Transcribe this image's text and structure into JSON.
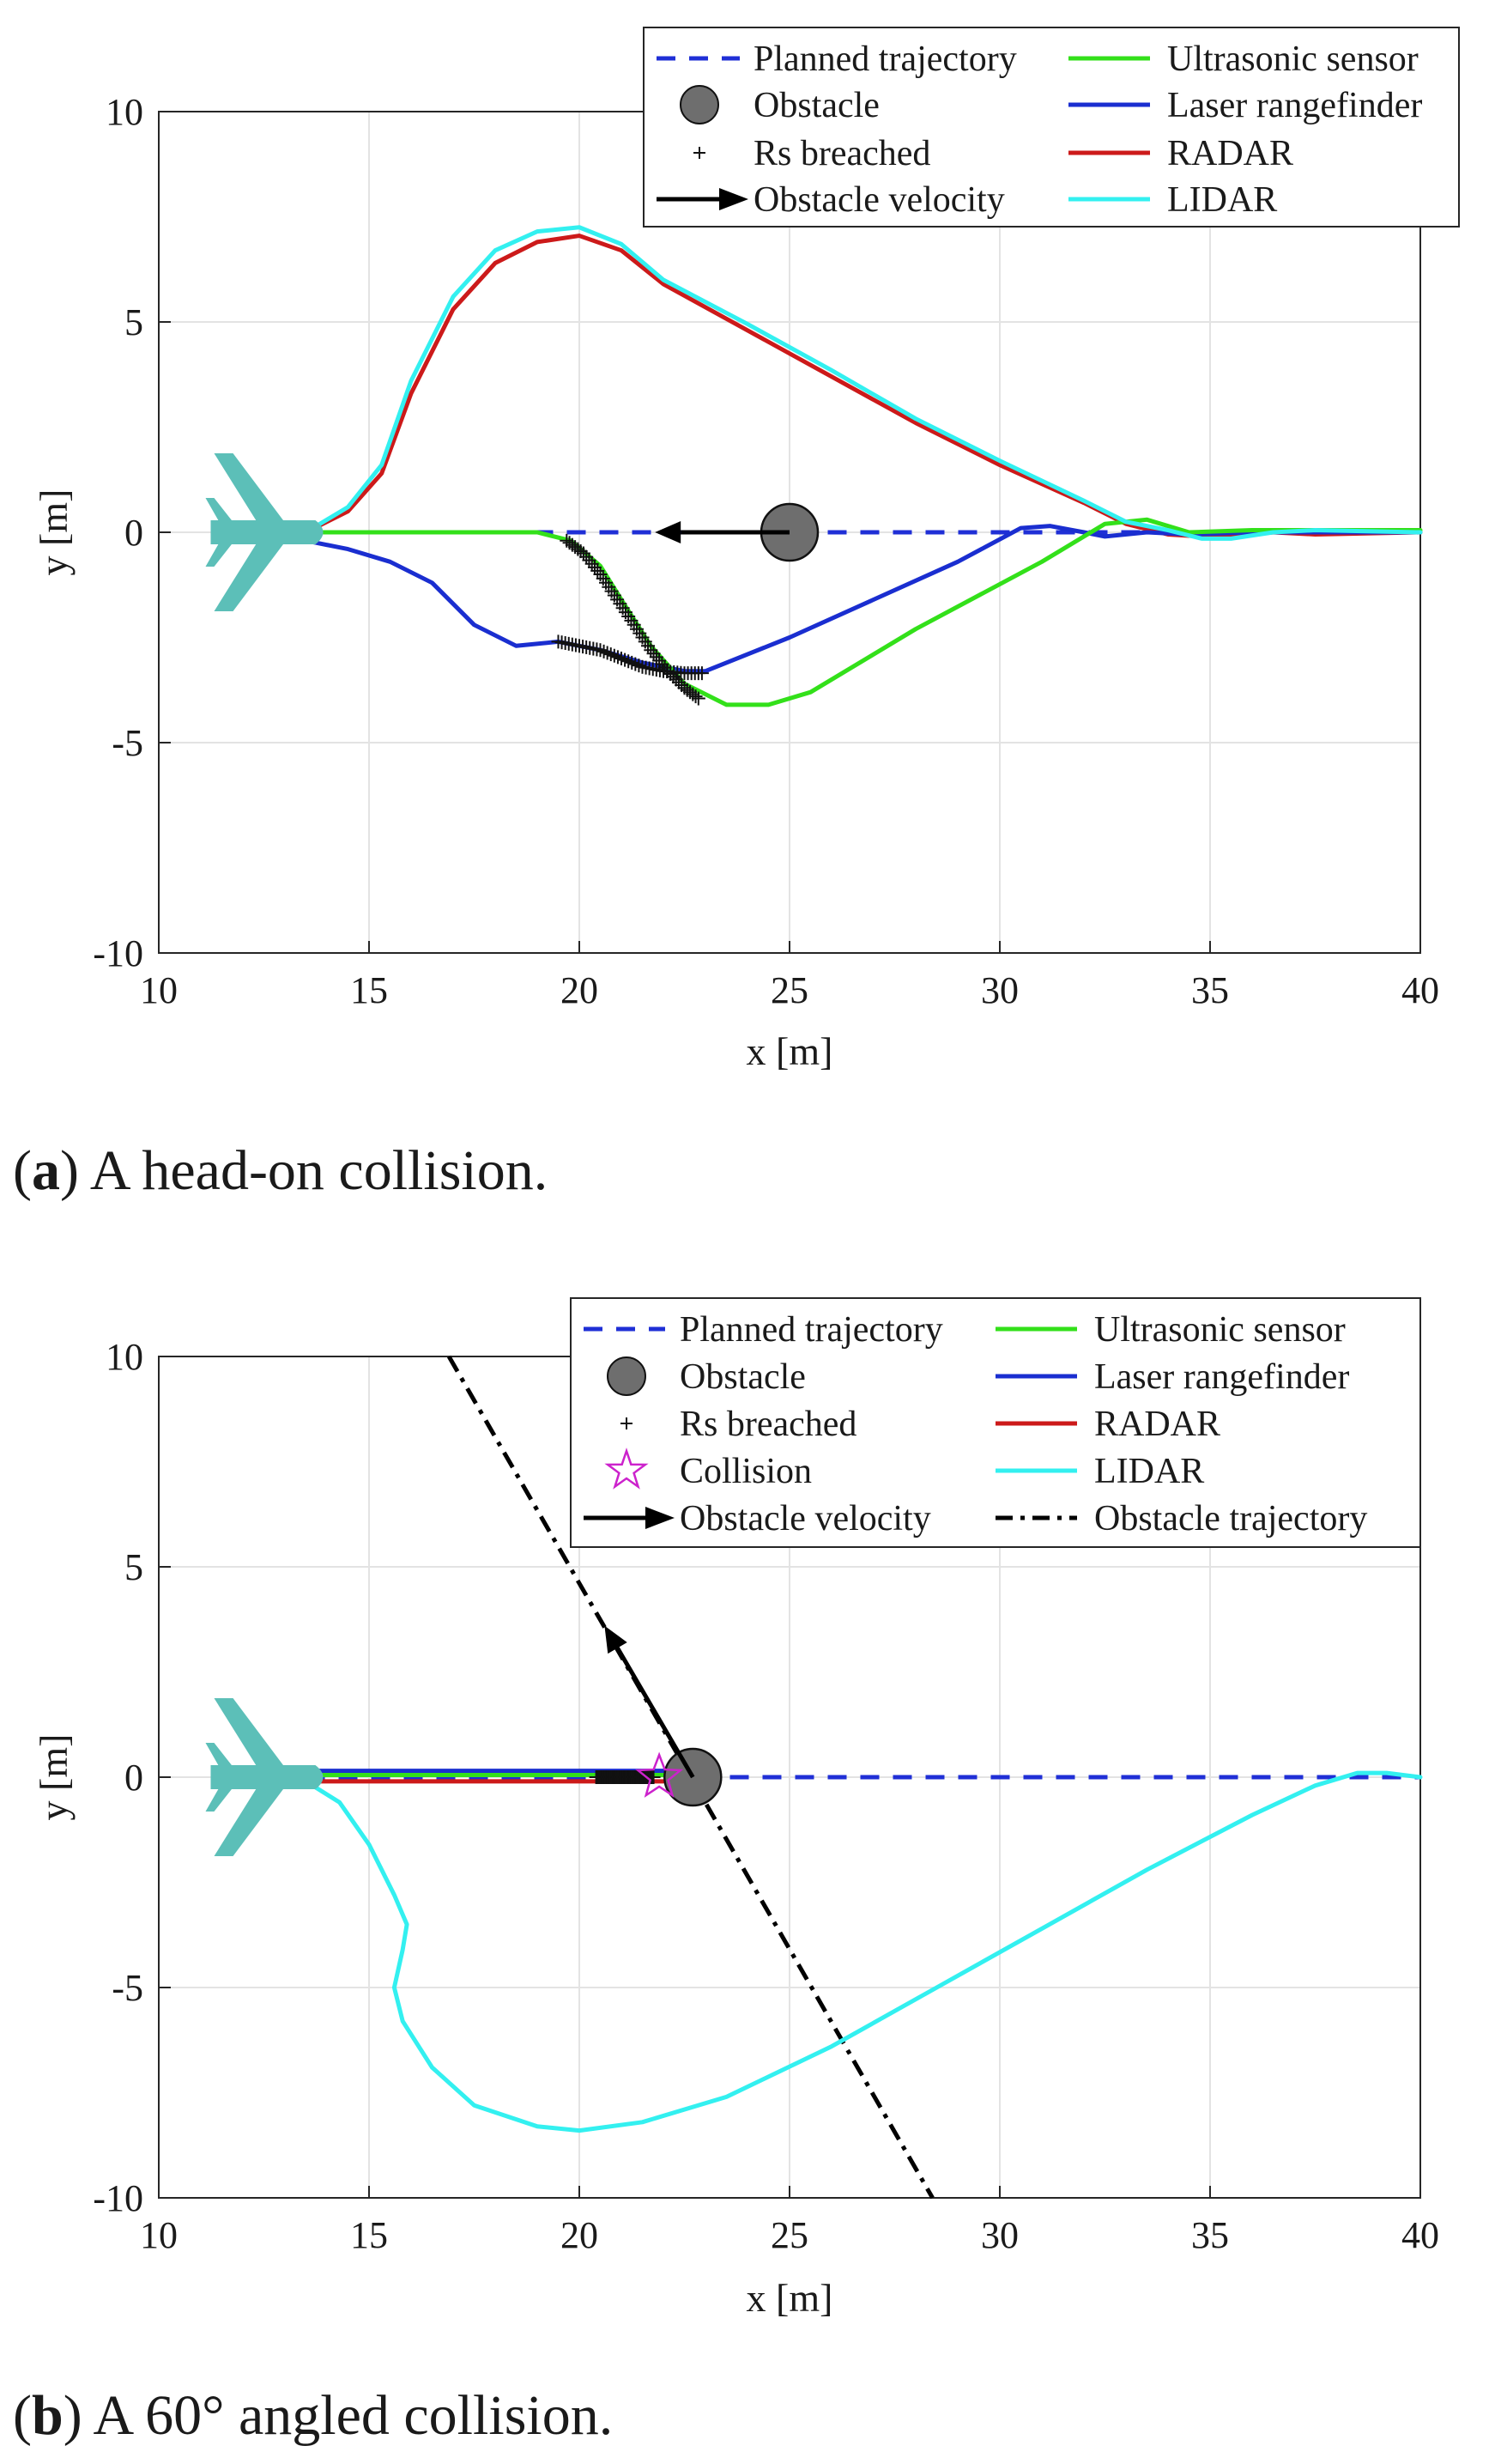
{
  "chart_data": [
    {
      "type": "line",
      "panel": "a",
      "caption_letter": "a",
      "caption_text": "A head-on collision.",
      "xlabel": "x [m]",
      "ylabel": "y [m]",
      "xlim": [
        10,
        40
      ],
      "ylim": [
        -10,
        10
      ],
      "xticks": [
        10,
        15,
        20,
        25,
        30,
        35,
        40
      ],
      "yticks": [
        10,
        5,
        0,
        -5,
        -10
      ],
      "grid": true,
      "legend_position": "top-right",
      "legend": {
        "planned": "Planned trajectory",
        "obstacle": "Obstacle",
        "breached": "Rs breached",
        "velocity": "Obstacle velocity",
        "ultrasonic": "Ultrasonic sensor",
        "laser": "Laser rangefinder",
        "radar": "RADAR",
        "lidar": "LIDAR"
      },
      "colors": {
        "planned": "#1f2fd6",
        "ultrasonic": "#33e01a",
        "laser": "#1a2ed0",
        "radar": "#cc1a1a",
        "lidar": "#33f0f0",
        "obstacle": "#6e6e6e",
        "aircraft": "#5cbfb8"
      },
      "planned": {
        "x": [
          13.5,
          40
        ],
        "y": [
          0,
          0
        ]
      },
      "aircraft": {
        "x": 12.5,
        "y": 0
      },
      "obstacle": {
        "x": 25,
        "y": 0
      },
      "velocity_arrow": {
        "from": [
          25,
          0
        ],
        "to": [
          21.8,
          0
        ]
      },
      "series": [
        {
          "name": "ultrasonic",
          "x": [
            13.5,
            16,
            19,
            19.8,
            20.5,
            21,
            21.7,
            22.5,
            23.5,
            24.5,
            25.5,
            28,
            31,
            32.5,
            33.5,
            34.5,
            36,
            40
          ],
          "y": [
            0,
            0,
            0,
            -0.2,
            -0.8,
            -1.6,
            -2.7,
            -3.6,
            -4.1,
            -4.1,
            -3.8,
            -2.3,
            -0.7,
            0.2,
            0.3,
            0,
            0.05,
            0.05
          ]
        },
        {
          "name": "laser",
          "x": [
            13.5,
            14.5,
            15.5,
            16.5,
            17.5,
            18.5,
            19.5,
            20.5,
            21.5,
            22.5,
            23,
            25,
            27,
            29,
            30.5,
            31.2,
            32,
            32.5,
            33.5,
            34.5,
            36,
            40
          ],
          "y": [
            -0.2,
            -0.4,
            -0.7,
            -1.2,
            -2.2,
            -2.7,
            -2.6,
            -2.8,
            -3.1,
            -3.3,
            -3.3,
            -2.5,
            -1.6,
            -0.7,
            0.1,
            0.15,
            0,
            -0.1,
            0,
            -0.05,
            0,
            0
          ]
        },
        {
          "name": "radar",
          "x": [
            13.5,
            14.5,
            15.3,
            16,
            17,
            18,
            19,
            20,
            21,
            22,
            24,
            26,
            28,
            30,
            32,
            33,
            34,
            34.8,
            35.5,
            36.5,
            37.5,
            40
          ],
          "y": [
            0,
            0.5,
            1.4,
            3.3,
            5.3,
            6.4,
            6.9,
            7.05,
            6.7,
            5.9,
            4.8,
            3.7,
            2.6,
            1.6,
            0.7,
            0.2,
            -0.05,
            -0.1,
            -0.1,
            0,
            -0.05,
            0
          ]
        },
        {
          "name": "lidar",
          "x": [
            13.5,
            14.5,
            15.3,
            16,
            17,
            18,
            19,
            20,
            21,
            22,
            24,
            26,
            28,
            30,
            32,
            33,
            34,
            34.8,
            35.5,
            36.5,
            37.5,
            40
          ],
          "y": [
            0,
            0.6,
            1.6,
            3.6,
            5.6,
            6.7,
            7.15,
            7.25,
            6.85,
            6.0,
            4.95,
            3.85,
            2.7,
            1.7,
            0.75,
            0.25,
            0.05,
            -0.15,
            -0.15,
            0,
            0.05,
            0
          ]
        }
      ],
      "breach_markers": [
        {
          "x": [
            19.7,
            20.1,
            20.5,
            20.9,
            21.3,
            21.7,
            22.1,
            22.5,
            22.9
          ],
          "y": [
            -0.2,
            -0.5,
            -1.0,
            -1.6,
            -2.2,
            -2.8,
            -3.3,
            -3.7,
            -4.0
          ]
        },
        {
          "x": [
            19.5,
            20.0,
            20.5,
            21.0,
            21.5,
            22.0,
            22.5,
            23.0
          ],
          "y": [
            -2.6,
            -2.7,
            -2.8,
            -3.0,
            -3.2,
            -3.3,
            -3.35,
            -3.35
          ]
        }
      ]
    },
    {
      "type": "line",
      "panel": "b",
      "caption_letter": "b",
      "caption_text": "A 60° angled collision.",
      "xlabel": "x [m]",
      "ylabel": "y [m]",
      "xlim": [
        10,
        40
      ],
      "ylim": [
        -10,
        10
      ],
      "xticks": [
        10,
        15,
        20,
        25,
        30,
        35,
        40
      ],
      "yticks": [
        10,
        5,
        0,
        -5,
        -10
      ],
      "grid": true,
      "legend_position": "top-right",
      "legend": {
        "planned": "Planned trajectory",
        "obstacle": "Obstacle",
        "breached": "Rs breached",
        "collision": "Collision",
        "velocity": "Obstacle velocity",
        "ultrasonic": "Ultrasonic sensor",
        "laser": "Laser rangefinder",
        "radar": "RADAR",
        "lidar": "LIDAR",
        "obstacle_traj": "Obstacle trajectory"
      },
      "colors": {
        "planned": "#1f2fd6",
        "ultrasonic": "#33e01a",
        "laser": "#1a2ed0",
        "radar": "#cc1a1a",
        "lidar": "#33f0f0",
        "obstacle": "#6e6e6e",
        "aircraft": "#5cbfb8",
        "collision": "#cc22cc"
      },
      "planned": {
        "x": [
          13.5,
          40
        ],
        "y": [
          0,
          0
        ]
      },
      "aircraft": {
        "x": 12.5,
        "y": 0
      },
      "obstacle": {
        "x": 22.7,
        "y": 0
      },
      "collision": {
        "x": 21.9,
        "y": 0
      },
      "velocity_arrow": {
        "from": [
          22.7,
          0
        ],
        "to": [
          20.6,
          3.6
        ]
      },
      "obstacle_trajectory": {
        "x": [
          16.9,
          28.4
        ],
        "y": [
          10,
          -10
        ]
      },
      "series": [
        {
          "name": "ultrasonic",
          "x": [
            13.5,
            22
          ],
          "y": [
            0.05,
            0.05
          ]
        },
        {
          "name": "laser",
          "x": [
            13.5,
            22
          ],
          "y": [
            0.15,
            0.15
          ]
        },
        {
          "name": "radar",
          "x": [
            13.5,
            22
          ],
          "y": [
            -0.1,
            -0.1
          ]
        },
        {
          "name": "lidar",
          "x": [
            13.5,
            14.3,
            15,
            15.6,
            15.9,
            15.8,
            15.6,
            15.8,
            16.5,
            17.5,
            19,
            20,
            21.5,
            23.5,
            26,
            28.5,
            31,
            33.5,
            36,
            37.5,
            38.5,
            39.2,
            40
          ],
          "y": [
            -0.1,
            -0.6,
            -1.6,
            -2.8,
            -3.5,
            -4.1,
            -5.0,
            -5.8,
            -6.9,
            -7.8,
            -8.3,
            -8.4,
            -8.2,
            -7.6,
            -6.4,
            -5.0,
            -3.6,
            -2.2,
            -0.9,
            -0.2,
            0.1,
            0.1,
            0
          ]
        }
      ],
      "breach_markers": [
        {
          "x": [
            20.4,
            20.6,
            20.8,
            21.0,
            21.2,
            21.4,
            21.6,
            21.8
          ],
          "y": [
            0,
            0,
            0,
            0,
            0,
            0,
            0,
            0
          ]
        }
      ]
    }
  ]
}
